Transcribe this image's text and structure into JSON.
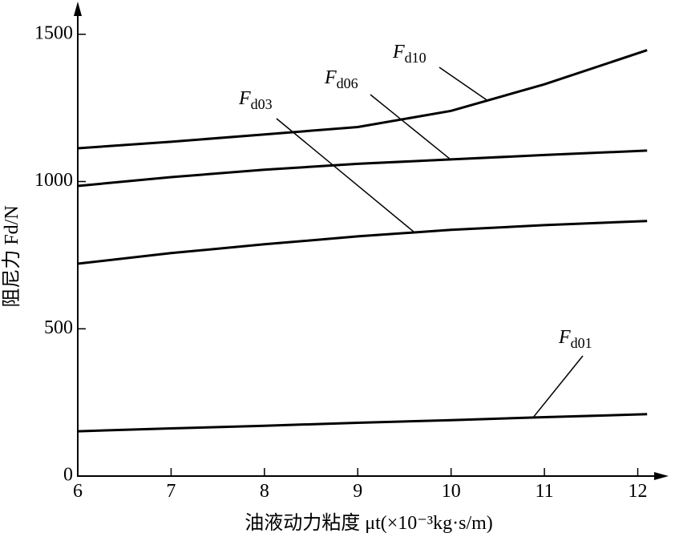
{
  "chart_data": {
    "type": "line",
    "x_label": "油液动力粘度 μt(×10⁻³kg·s/m)",
    "y_label": "阻尼力 Fd/N",
    "x": [
      6,
      7,
      8,
      9,
      10,
      11,
      12.1
    ],
    "series": [
      {
        "name": "Fd10",
        "color": "#000000",
        "values": [
          1113,
          1135,
          1160,
          1185,
          1240,
          1330,
          1446
        ]
      },
      {
        "name": "Fd06",
        "color": "#000000",
        "values": [
          985,
          1015,
          1040,
          1060,
          1075,
          1090,
          1105
        ]
      },
      {
        "name": "Fd03",
        "color": "#000000",
        "values": [
          721,
          757,
          787,
          814,
          836,
          852,
          866
        ]
      },
      {
        "name": "Fd01",
        "color": "#000000",
        "values": [
          152,
          162,
          171,
          181,
          190,
          200,
          210
        ]
      }
    ],
    "xlim": [
      6,
      12.15
    ],
    "xticks": [
      6,
      7,
      8,
      9,
      10,
      11,
      12
    ],
    "ylim": [
      0,
      1600
    ],
    "yticks": [
      0,
      500,
      1000,
      1500
    ],
    "grid": false
  }
}
